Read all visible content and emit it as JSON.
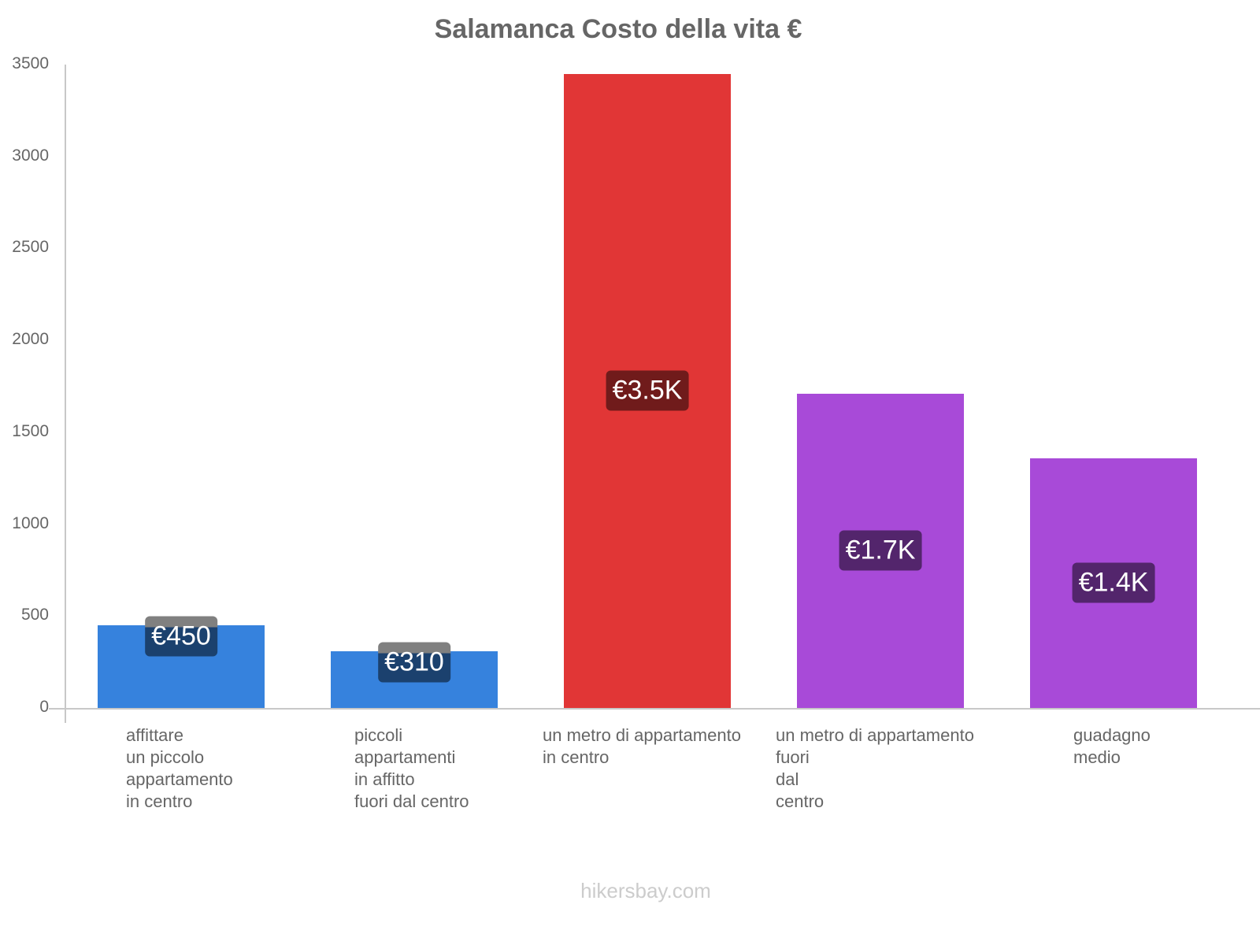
{
  "chart_data": {
    "type": "bar",
    "title": "Salamanca Costo della vita €",
    "xlabel": "",
    "ylabel": "",
    "ylim": [
      0,
      3500
    ],
    "yticks": [
      0,
      500,
      1000,
      1500,
      2000,
      2500,
      3000,
      3500
    ],
    "grid": false,
    "legend": null,
    "categories": [
      "affittare\nun piccolo\nappartamento\nin centro",
      "piccoli\nappartamenti\nin affitto\nfuori dal centro",
      "un metro di appartamento\nin centro",
      "un metro di appartamento\nfuori\ndal\ncentro",
      "guadagno\nmedio"
    ],
    "values": [
      450,
      310,
      3450,
      1710,
      1360
    ],
    "value_labels": [
      "€450",
      "€310",
      "€3.5K",
      "€1.7K",
      "€1.4K"
    ],
    "colors": [
      "#3682dd",
      "#3682dd",
      "#e13636",
      "#a84ad8",
      "#a84ad8"
    ],
    "label_bg_colors": [
      "#1b416e",
      "#1b416e",
      "#701b1b",
      "#53256c",
      "#53256c"
    ]
  },
  "yticks_text": [
    "0",
    "500",
    "1000",
    "1500",
    "2000",
    "2500",
    "3000",
    "3500"
  ],
  "watermark": "hikersbay.com"
}
